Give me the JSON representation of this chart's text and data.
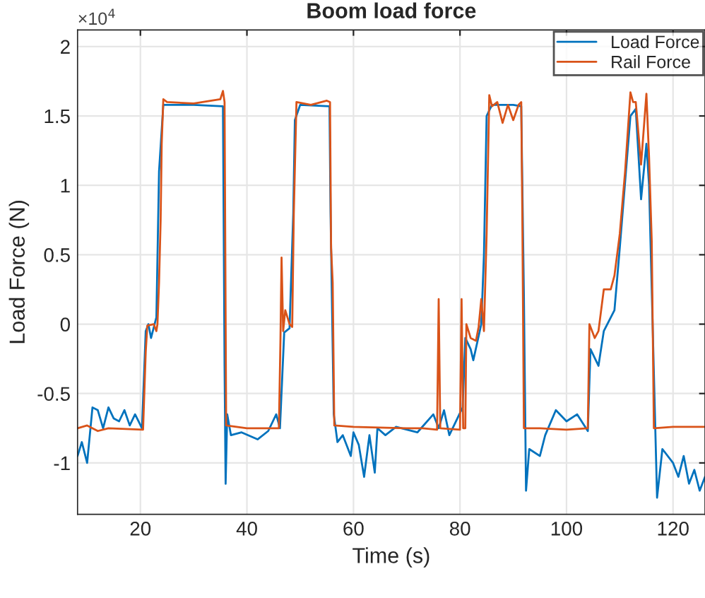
{
  "chart_data": {
    "type": "line",
    "title": "Boom load force",
    "xlabel": "Time (s)",
    "ylabel": "Load Force (N)",
    "annotations": [
      "×10$^{4}$"
    ],
    "xlim": [
      8.2,
      126
    ],
    "xticks": [
      20,
      40,
      60,
      80,
      100,
      120
    ],
    "ylim": [
      -1.37,
      2.12
    ],
    "yticks": [
      -1,
      -0.5,
      0,
      0.5,
      1,
      1.5,
      2
    ],
    "grid": true,
    "legend": "top right",
    "line_style": "solid",
    "marker": "none",
    "series": [
      {
        "name": "Load Force",
        "color": "#0072bd",
        "x": [
          8.2,
          9,
          10,
          11,
          12,
          13,
          14,
          15,
          16,
          17,
          18,
          19,
          20.3,
          21,
          21.5,
          22,
          23,
          23.5,
          24,
          24.3,
          30,
          35.5,
          35.8,
          36,
          36.3,
          37,
          39,
          42,
          44,
          45.5,
          46.2,
          47,
          48,
          48.7,
          49,
          50,
          55.5,
          55.7,
          56.3,
          57,
          58,
          59.5,
          60,
          61,
          62,
          63,
          64,
          64.5,
          66,
          68,
          72,
          75,
          76,
          77,
          78,
          80.5,
          81,
          82,
          82.5,
          84,
          84.5,
          85,
          86,
          90,
          91.5,
          92,
          92.4,
          93,
          95,
          96,
          98,
          100,
          102,
          104,
          104.5,
          106,
          107,
          109,
          110,
          112,
          113,
          114,
          115,
          115.5,
          116.5,
          117,
          118,
          120,
          121,
          122,
          123,
          124,
          125,
          126
        ],
        "values": [
          -0.95,
          -0.85,
          -1.0,
          -0.6,
          -0.62,
          -0.75,
          -0.6,
          -0.68,
          -0.7,
          -0.62,
          -0.73,
          -0.65,
          -0.75,
          -0.05,
          0,
          -0.1,
          0.05,
          1.1,
          1.4,
          1.58,
          1.58,
          1.57,
          -0.3,
          -1.15,
          -0.65,
          -0.8,
          -0.78,
          -0.83,
          -0.77,
          -0.65,
          -0.75,
          -0.06,
          -0.03,
          0.8,
          1.47,
          1.58,
          1.57,
          0.8,
          -0.65,
          -0.85,
          -0.8,
          -0.95,
          -0.78,
          -0.87,
          -1.1,
          -0.8,
          -1.07,
          -0.75,
          -0.8,
          -0.74,
          -0.78,
          -0.65,
          -0.75,
          -0.62,
          -0.8,
          -0.6,
          -0.1,
          -0.18,
          -0.26,
          0,
          0.5,
          1.5,
          1.58,
          1.58,
          1.57,
          0.2,
          -1.2,
          -0.9,
          -0.95,
          -0.8,
          -0.62,
          -0.7,
          -0.65,
          -0.77,
          -0.18,
          -0.3,
          -0.05,
          0.1,
          0.55,
          1.5,
          1.55,
          0.9,
          1.3,
          1.0,
          -0.5,
          -1.25,
          -0.9,
          -1.0,
          -1.1,
          -0.95,
          -1.15,
          -1.05,
          -1.2,
          -1.1
        ]
      },
      {
        "name": "Rail Force",
        "color": "#d95319",
        "x": [
          8.2,
          10,
          12,
          14,
          20.5,
          21,
          21.3,
          22.5,
          23,
          23.2,
          23.5,
          23.8,
          24,
          24.3,
          25,
          30,
          35,
          35.5,
          35.8,
          36.1,
          40,
          46,
          46.3,
          46.5,
          46.8,
          47.2,
          48,
          48.5,
          48.8,
          49.3,
          52,
          55,
          55.6,
          55.8,
          56.1,
          56.4,
          60,
          70,
          73,
          75.7,
          76,
          76.3,
          80,
          80.3,
          80.6,
          81,
          81.2,
          82,
          83,
          83.5,
          84,
          84.5,
          85,
          85.5,
          86,
          87,
          88,
          89,
          90,
          91,
          91.5,
          91.7,
          92,
          95,
          100,
          104,
          104.3,
          105.3,
          106,
          107,
          108.3,
          109,
          110,
          111,
          112,
          112.5,
          113,
          114,
          115,
          115.5,
          116,
          116.4,
          120,
          126
        ],
        "values": [
          -0.75,
          -0.73,
          -0.77,
          -0.75,
          -0.76,
          -0.2,
          -0.01,
          0,
          -0.05,
          0,
          0.3,
          0.75,
          1.3,
          1.62,
          1.6,
          1.59,
          1.62,
          1.68,
          1.6,
          -0.73,
          -0.75,
          -0.75,
          -0.1,
          0.48,
          -0.05,
          0.1,
          0,
          -0.02,
          0.8,
          1.6,
          1.58,
          1.61,
          1.6,
          0.55,
          0.3,
          -0.73,
          -0.74,
          -0.75,
          -0.75,
          -0.76,
          0.18,
          -0.75,
          -0.76,
          0.18,
          -0.75,
          -0.75,
          0,
          -0.1,
          -0.12,
          -0.02,
          0.18,
          -0.05,
          0.65,
          1.65,
          1.57,
          1.6,
          1.45,
          1.58,
          1.47,
          1.58,
          1.6,
          0.8,
          -0.75,
          -0.75,
          -0.76,
          -0.75,
          0,
          -0.1,
          -0.05,
          0.25,
          0.25,
          0.35,
          0.65,
          1.1,
          1.67,
          1.6,
          1.6,
          1.15,
          1.66,
          1.2,
          0.6,
          -0.75,
          -0.74,
          -0.74
        ]
      }
    ]
  }
}
